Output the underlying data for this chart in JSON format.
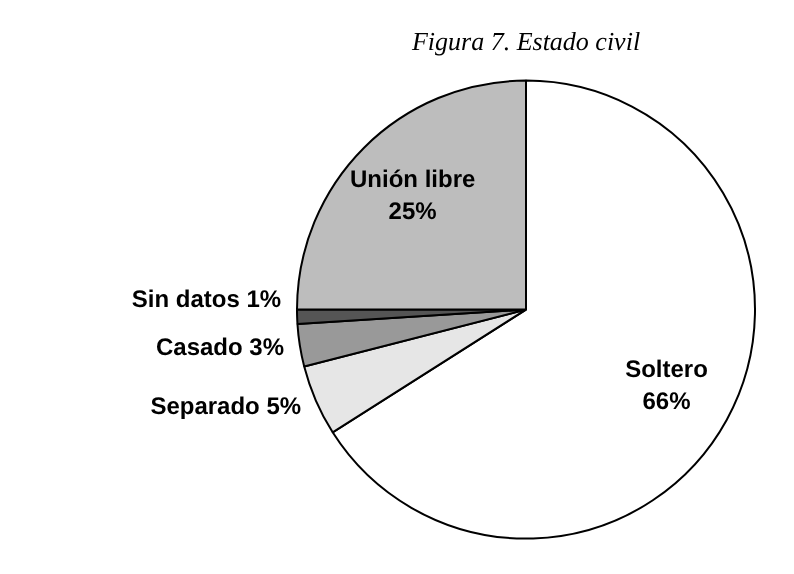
{
  "chart_data": {
    "type": "pie",
    "title": "Figura 7. Estado civil",
    "categories": [
      "Soltero",
      "Separado",
      "Casado",
      "Sin datos",
      "Unión libre"
    ],
    "values": [
      66,
      5,
      3,
      1,
      25
    ],
    "colors": [
      "#ffffff",
      "#e6e6e6",
      "#999999",
      "#555555",
      "#bdbdbd"
    ],
    "value_labels": [
      "66%",
      "5%",
      "3%",
      "1%",
      "25%"
    ],
    "legend": false
  }
}
